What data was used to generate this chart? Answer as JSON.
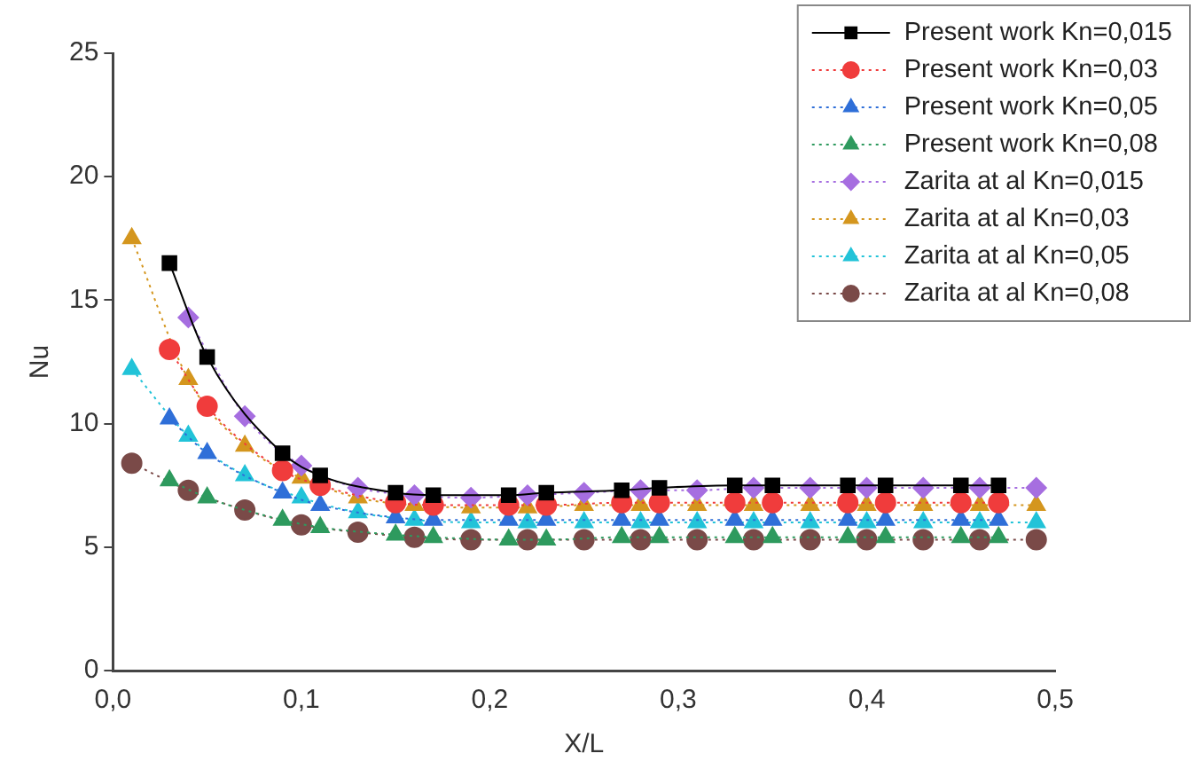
{
  "chart_data": {
    "type": "line",
    "xlabel": "X/L",
    "ylabel": "Nu",
    "xlim": [
      0,
      0.5
    ],
    "ylim": [
      0,
      25
    ],
    "xticks": [
      {
        "value": 0,
        "label": "0,0"
      },
      {
        "value": 0.1,
        "label": "0,1"
      },
      {
        "value": 0.2,
        "label": "0,2"
      },
      {
        "value": 0.3,
        "label": "0,3"
      },
      {
        "value": 0.4,
        "label": "0,4"
      },
      {
        "value": 0.5,
        "label": "0,5"
      }
    ],
    "yticks": [
      0,
      5,
      10,
      15,
      20,
      25
    ],
    "grid": false,
    "legend": "top right",
    "series": [
      {
        "name": "Present work Kn=0,015",
        "color": "#000000",
        "marker": "square",
        "line_style": "solid",
        "x": [
          0.03,
          0.05,
          0.09,
          0.11,
          0.15,
          0.17,
          0.21,
          0.23,
          0.27,
          0.29,
          0.33,
          0.35,
          0.39,
          0.41,
          0.45,
          0.47
        ],
        "values": [
          16.5,
          12.7,
          8.8,
          7.9,
          7.2,
          7.1,
          7.1,
          7.2,
          7.3,
          7.4,
          7.5,
          7.5,
          7.5,
          7.5,
          7.5,
          7.5
        ]
      },
      {
        "name": "Present work Kn=0,03",
        "color": "#f03c3c",
        "marker": "circle",
        "line_style": "dotted",
        "x": [
          0.03,
          0.05,
          0.09,
          0.11,
          0.15,
          0.17,
          0.21,
          0.23,
          0.27,
          0.29,
          0.33,
          0.35,
          0.39,
          0.41,
          0.45,
          0.47
        ],
        "values": [
          13.0,
          10.7,
          8.1,
          7.5,
          6.8,
          6.7,
          6.7,
          6.7,
          6.8,
          6.8,
          6.8,
          6.8,
          6.8,
          6.8,
          6.8,
          6.8
        ]
      },
      {
        "name": "Present work Kn=0,05",
        "color": "#2f6fd8",
        "marker": "triangle",
        "line_style": "dotted",
        "x": [
          0.03,
          0.05,
          0.09,
          0.11,
          0.15,
          0.17,
          0.21,
          0.23,
          0.27,
          0.29,
          0.33,
          0.35,
          0.39,
          0.41,
          0.45,
          0.47
        ],
        "values": [
          10.2,
          8.8,
          7.2,
          6.7,
          6.2,
          6.1,
          6.1,
          6.1,
          6.1,
          6.1,
          6.1,
          6.1,
          6.1,
          6.1,
          6.1,
          6.1
        ]
      },
      {
        "name": "Present work Kn=0,08",
        "color": "#2e9a5e",
        "marker": "triangle",
        "line_style": "dotted",
        "x": [
          0.03,
          0.05,
          0.09,
          0.11,
          0.15,
          0.17,
          0.21,
          0.23,
          0.27,
          0.29,
          0.33,
          0.35,
          0.39,
          0.41,
          0.45,
          0.47
        ],
        "values": [
          7.7,
          7.0,
          6.1,
          5.8,
          5.5,
          5.4,
          5.3,
          5.3,
          5.4,
          5.4,
          5.4,
          5.4,
          5.4,
          5.4,
          5.4,
          5.4
        ]
      },
      {
        "name": "Zarita at al Kn=0,015",
        "color": "#a66ee0",
        "marker": "diamond",
        "line_style": "dotted",
        "x": [
          0.04,
          0.07,
          0.1,
          0.13,
          0.16,
          0.19,
          0.22,
          0.25,
          0.28,
          0.31,
          0.34,
          0.37,
          0.4,
          0.43,
          0.46,
          0.49
        ],
        "values": [
          14.3,
          10.3,
          8.3,
          7.4,
          7.1,
          7.0,
          7.1,
          7.2,
          7.3,
          7.3,
          7.4,
          7.4,
          7.4,
          7.4,
          7.4,
          7.4
        ]
      },
      {
        "name": "Zarita at al Kn=0,03",
        "color": "#d4961e",
        "marker": "triangle",
        "line_style": "dotted",
        "x": [
          0.01,
          0.04,
          0.07,
          0.1,
          0.13,
          0.16,
          0.19,
          0.22,
          0.25,
          0.28,
          0.31,
          0.34,
          0.37,
          0.4,
          0.43,
          0.46,
          0.49
        ],
        "values": [
          17.5,
          11.8,
          9.1,
          7.8,
          7.0,
          6.7,
          6.6,
          6.6,
          6.7,
          6.7,
          6.7,
          6.7,
          6.7,
          6.7,
          6.7,
          6.7,
          6.7
        ]
      },
      {
        "name": "Zarita at al Kn=0,05",
        "color": "#22c3d8",
        "marker": "triangle",
        "line_style": "dotted",
        "x": [
          0.01,
          0.04,
          0.07,
          0.1,
          0.13,
          0.16,
          0.19,
          0.22,
          0.25,
          0.28,
          0.31,
          0.34,
          0.37,
          0.4,
          0.43,
          0.46,
          0.49
        ],
        "values": [
          12.2,
          9.5,
          7.9,
          7.0,
          6.4,
          6.1,
          6.0,
          6.0,
          6.0,
          6.0,
          6.0,
          6.0,
          6.0,
          6.0,
          6.0,
          6.0,
          6.0
        ]
      },
      {
        "name": "Zarita at al Kn=0,08",
        "color": "#7a4a48",
        "marker": "circle",
        "line_style": "dotted",
        "x": [
          0.01,
          0.04,
          0.07,
          0.1,
          0.13,
          0.16,
          0.19,
          0.22,
          0.25,
          0.28,
          0.31,
          0.34,
          0.37,
          0.4,
          0.43,
          0.46,
          0.49
        ],
        "values": [
          8.4,
          7.3,
          6.5,
          5.9,
          5.6,
          5.4,
          5.3,
          5.3,
          5.3,
          5.3,
          5.3,
          5.3,
          5.3,
          5.3,
          5.3,
          5.3,
          5.3
        ]
      }
    ]
  }
}
